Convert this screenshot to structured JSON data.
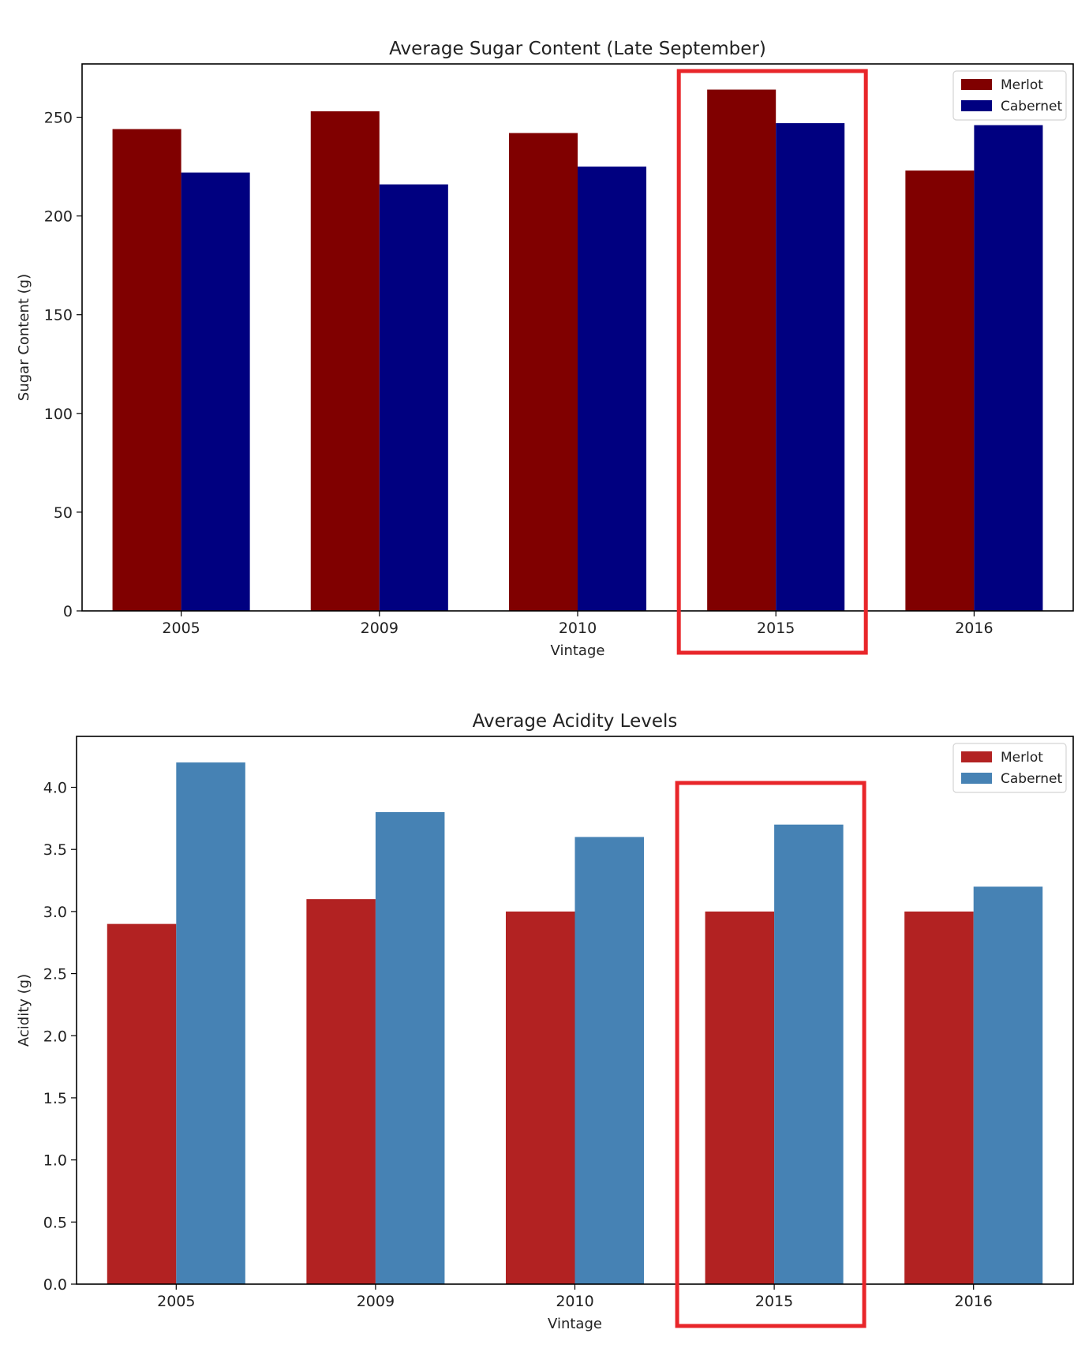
{
  "chart_data": [
    {
      "type": "bar",
      "title": "Average Sugar Content (Late September)",
      "xlabel": "Vintage",
      "ylabel": "Sugar Content (g)",
      "categories": [
        "2005",
        "2009",
        "2010",
        "2015",
        "2016"
      ],
      "series": [
        {
          "name": "Merlot",
          "color": "#800000",
          "values": [
            244,
            253,
            242,
            264,
            223
          ]
        },
        {
          "name": "Cabernet",
          "color": "#000080",
          "values": [
            222,
            216,
            225,
            247,
            246
          ]
        }
      ],
      "ylim": [
        0,
        277
      ],
      "yticks": [
        0,
        50,
        100,
        150,
        200,
        250
      ],
      "ytick_labels": [
        "0",
        "50",
        "100",
        "150",
        "200",
        "250"
      ],
      "grid": false,
      "legend": "top-right",
      "highlight": {
        "category": "2015",
        "color": "#e8262a"
      }
    },
    {
      "type": "bar",
      "title": "Average Acidity Levels",
      "xlabel": "Vintage",
      "ylabel": "Acidity (g)",
      "categories": [
        "2005",
        "2009",
        "2010",
        "2015",
        "2016"
      ],
      "series": [
        {
          "name": "Merlot",
          "color": "#b22222",
          "values": [
            2.9,
            3.1,
            3.0,
            3.0,
            3.0
          ]
        },
        {
          "name": "Cabernet",
          "color": "#4682b4",
          "values": [
            4.2,
            3.8,
            3.6,
            3.7,
            3.2
          ]
        }
      ],
      "ylim": [
        0,
        4.41
      ],
      "yticks": [
        0,
        0.5,
        1.0,
        1.5,
        2.0,
        2.5,
        3.0,
        3.5,
        4.0
      ],
      "ytick_labels": [
        "0.0",
        "0.5",
        "1.0",
        "1.5",
        "2.0",
        "2.5",
        "3.0",
        "3.5",
        "4.0"
      ],
      "grid": false,
      "legend": "top-right",
      "highlight": {
        "category": "2015",
        "color": "#e8262a"
      }
    }
  ]
}
